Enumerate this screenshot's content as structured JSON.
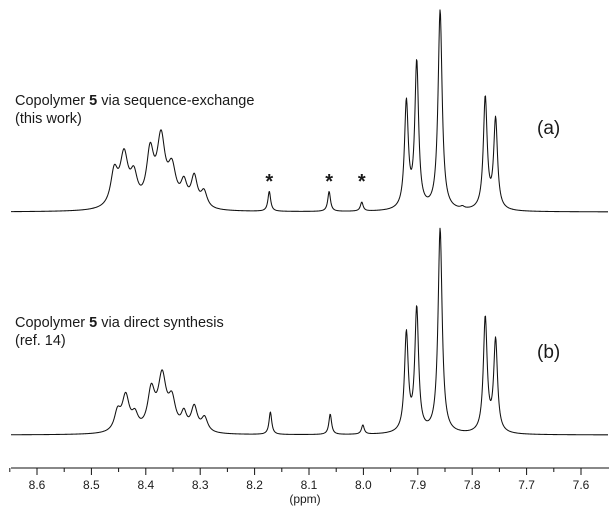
{
  "chart_data": {
    "type": "line",
    "xlabel": "(ppm)",
    "xlim": [
      8.66,
      7.56
    ],
    "x_reversed": true,
    "ticks": [
      "8.6",
      "8.5",
      "8.4",
      "8.3",
      "8.2",
      "8.1",
      "8.0",
      "7.9",
      "7.8",
      "7.7",
      "7.6"
    ],
    "tick_values": [
      8.6,
      8.5,
      8.4,
      8.3,
      8.2,
      8.1,
      8.0,
      7.9,
      7.8,
      7.7,
      7.6
    ],
    "grid": false,
    "panels": [
      {
        "tag": "(a)",
        "caption_line1": {
          "before": "Copolymer ",
          "bold": "5",
          "after": " via sequence-exchange"
        },
        "caption_line2": "(this work)",
        "star_label": "*",
        "star_positions_ppm": [
          8.173,
          8.063,
          8.003
        ],
        "peaks": [
          {
            "x": 8.458,
            "h": 0.17,
            "w": 0.008
          },
          {
            "x": 8.44,
            "h": 0.25,
            "w": 0.009
          },
          {
            "x": 8.422,
            "h": 0.14,
            "w": 0.008
          },
          {
            "x": 8.392,
            "h": 0.26,
            "w": 0.008
          },
          {
            "x": 8.372,
            "h": 0.33,
            "w": 0.009
          },
          {
            "x": 8.352,
            "h": 0.18,
            "w": 0.009
          },
          {
            "x": 8.33,
            "h": 0.11,
            "w": 0.007
          },
          {
            "x": 8.311,
            "h": 0.15,
            "w": 0.007
          },
          {
            "x": 8.293,
            "h": 0.08,
            "w": 0.007
          },
          {
            "x": 8.173,
            "h": 0.1,
            "w": 0.003
          },
          {
            "x": 8.063,
            "h": 0.1,
            "w": 0.003
          },
          {
            "x": 8.003,
            "h": 0.045,
            "w": 0.003
          },
          {
            "x": 7.921,
            "h": 0.53,
            "w": 0.0042
          },
          {
            "x": 7.902,
            "h": 0.73,
            "w": 0.0042
          },
          {
            "x": 7.859,
            "h": 1.0,
            "w": 0.0045
          },
          {
            "x": 7.818,
            "h": 0.01,
            "w": 0.004
          },
          {
            "x": 7.776,
            "h": 0.56,
            "w": 0.0042
          },
          {
            "x": 7.757,
            "h": 0.45,
            "w": 0.0042
          }
        ]
      },
      {
        "tag": "(b)",
        "caption_line1": {
          "before": "Copolymer ",
          "bold": "5",
          "after": " via direct synthesis"
        },
        "caption_line2": "(ref. 14)",
        "peaks": [
          {
            "x": 8.452,
            "h": 0.09,
            "w": 0.007
          },
          {
            "x": 8.437,
            "h": 0.17,
            "w": 0.008
          },
          {
            "x": 8.42,
            "h": 0.07,
            "w": 0.007
          },
          {
            "x": 8.39,
            "h": 0.19,
            "w": 0.008
          },
          {
            "x": 8.37,
            "h": 0.26,
            "w": 0.009
          },
          {
            "x": 8.352,
            "h": 0.14,
            "w": 0.008
          },
          {
            "x": 8.33,
            "h": 0.08,
            "w": 0.006
          },
          {
            "x": 8.311,
            "h": 0.12,
            "w": 0.007
          },
          {
            "x": 8.292,
            "h": 0.07,
            "w": 0.007
          },
          {
            "x": 8.171,
            "h": 0.11,
            "w": 0.003
          },
          {
            "x": 8.061,
            "h": 0.1,
            "w": 0.003
          },
          {
            "x": 8.001,
            "h": 0.045,
            "w": 0.003
          },
          {
            "x": 7.921,
            "h": 0.48,
            "w": 0.0042
          },
          {
            "x": 7.902,
            "h": 0.6,
            "w": 0.0042
          },
          {
            "x": 7.859,
            "h": 1.0,
            "w": 0.0045
          },
          {
            "x": 7.776,
            "h": 0.56,
            "w": 0.0042
          },
          {
            "x": 7.757,
            "h": 0.45,
            "w": 0.0042
          }
        ]
      }
    ]
  }
}
